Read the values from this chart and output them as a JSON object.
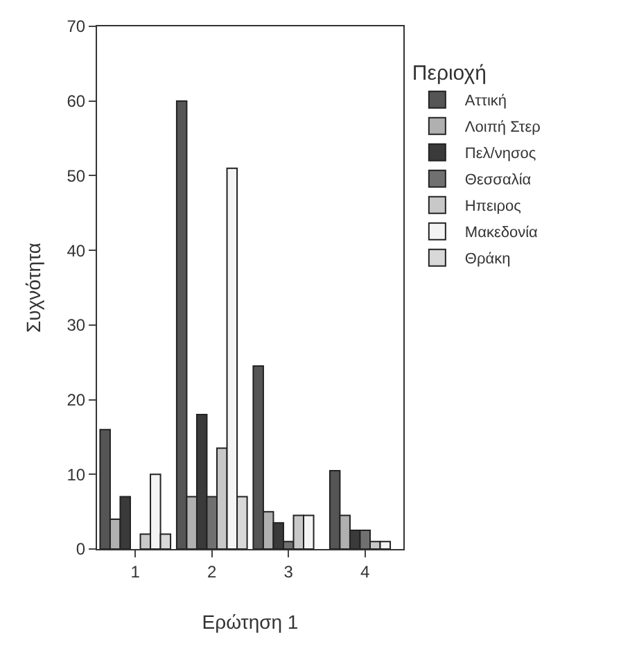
{
  "chart_data": {
    "type": "bar",
    "xlabel": "Ερώτηση 1",
    "ylabel": "Συχνότητα",
    "legend_title": "Περιοχή",
    "categories": [
      "1",
      "2",
      "3",
      "4"
    ],
    "ylim": [
      0,
      70
    ],
    "yticks": [
      0,
      10,
      20,
      30,
      40,
      50,
      60,
      70
    ],
    "legend": "right",
    "series": [
      {
        "name": "Αττική",
        "color": "#555555",
        "values": [
          16,
          60,
          24.5,
          10.5
        ]
      },
      {
        "name": "Λοιπή Στερ",
        "color": "#b0b0b0",
        "values": [
          4,
          7,
          5,
          4.5
        ]
      },
      {
        "name": "Πελ/νησος",
        "color": "#3a3a3a",
        "values": [
          7,
          18,
          3.5,
          2.5
        ]
      },
      {
        "name": "Θεσσαλία",
        "color": "#707070",
        "values": [
          null,
          7,
          1,
          2.5
        ]
      },
      {
        "name": "Ηπειρος",
        "color": "#c8c8c8",
        "values": [
          2,
          13.5,
          4.5,
          1
        ]
      },
      {
        "name": "Μακεδονία",
        "color": "#f4f4f4",
        "values": [
          10,
          51,
          4.5,
          1
        ]
      },
      {
        "name": "Θράκη",
        "color": "#d8d8d8",
        "values": [
          2,
          7,
          null,
          null
        ]
      }
    ]
  }
}
